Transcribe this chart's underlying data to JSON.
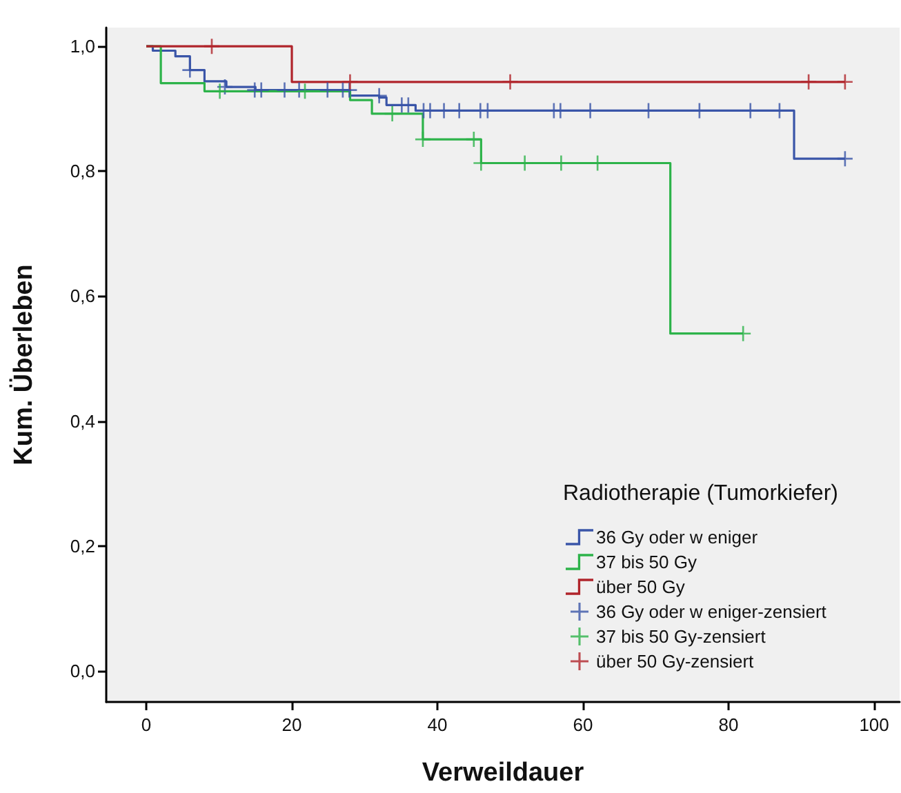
{
  "chart_data": {
    "type": "step",
    "xlabel": "Verweildauer",
    "ylabel": "Kum. Überleben",
    "legend_title": "Radiotherapie (Tumorkiefer)",
    "legend": "bottom right",
    "grid": false,
    "xlim": [
      -5.5,
      103.5
    ],
    "ylim": [
      -0.05,
      1.03
    ],
    "xticks": [
      0,
      20,
      40,
      60,
      80,
      100
    ],
    "yticks": [
      {
        "value": 0,
        "label": "0,0"
      },
      {
        "value": 0.2,
        "label": "0,2"
      },
      {
        "value": 0.4,
        "label": "0,4"
      },
      {
        "value": 0.6,
        "label": "0,6"
      },
      {
        "value": 0.8,
        "label": "0,8"
      },
      {
        "value": 1,
        "label": "1,0"
      }
    ],
    "series": [
      {
        "name": "36 Gy oder w eniger",
        "marker": "none",
        "color": "#3a55a8",
        "x": [
          0,
          0.9,
          4,
          6,
          8,
          11,
          15,
          28,
          32,
          33,
          37,
          89,
          96
        ],
        "values": [
          1,
          0.993,
          0.984,
          0.962,
          0.944,
          0.935,
          0.93,
          0.921,
          0.918,
          0.906,
          0.897,
          0.82,
          0.82
        ]
      },
      {
        "name": "37 bis 50 Gy",
        "marker": "none",
        "color": "#2db34a",
        "x": [
          0,
          2,
          8,
          28,
          31,
          38,
          46,
          72,
          82
        ],
        "values": [
          1,
          0.941,
          0.928,
          0.914,
          0.892,
          0.851,
          0.813,
          0.54,
          0.54
        ]
      },
      {
        "name": "über 50 Gy",
        "marker": "none",
        "color": "#b0242b",
        "x": [
          0,
          20,
          96
        ],
        "values": [
          1,
          0.943,
          0.943
        ]
      },
      {
        "name": "36 Gy oder w eniger-zensiert",
        "type": "scatter",
        "marker": "cross",
        "color": "#3a55a8",
        "x": [
          6,
          10.8,
          14.9,
          15.8,
          19,
          21,
          24.9,
          27,
          27.9,
          32,
          35.1,
          36,
          38.1,
          39,
          40.9,
          43,
          45.9,
          46.9,
          56,
          56.9,
          61,
          69,
          76,
          83,
          87,
          96
        ],
        "values": [
          0.962,
          0.935,
          0.93,
          0.93,
          0.93,
          0.93,
          0.93,
          0.93,
          0.93,
          0.921,
          0.906,
          0.906,
          0.897,
          0.897,
          0.897,
          0.897,
          0.897,
          0.897,
          0.897,
          0.897,
          0.897,
          0.897,
          0.897,
          0.897,
          0.897,
          0.82
        ]
      },
      {
        "name": "37 bis 50 Gy-zensiert",
        "type": "scatter",
        "marker": "cross",
        "color": "#2db34a",
        "x": [
          10.1,
          21.8,
          33.8,
          38,
          45,
          46,
          52,
          57,
          62,
          82
        ],
        "values": [
          0.928,
          0.928,
          0.892,
          0.851,
          0.851,
          0.813,
          0.813,
          0.813,
          0.813,
          0.54
        ]
      },
      {
        "name": "über 50 Gy-zensiert",
        "type": "scatter",
        "marker": "cross",
        "color": "#b0242b",
        "x": [
          9,
          28,
          50,
          91,
          96
        ],
        "values": [
          1,
          0.943,
          0.943,
          0.943,
          0.943
        ]
      }
    ]
  }
}
